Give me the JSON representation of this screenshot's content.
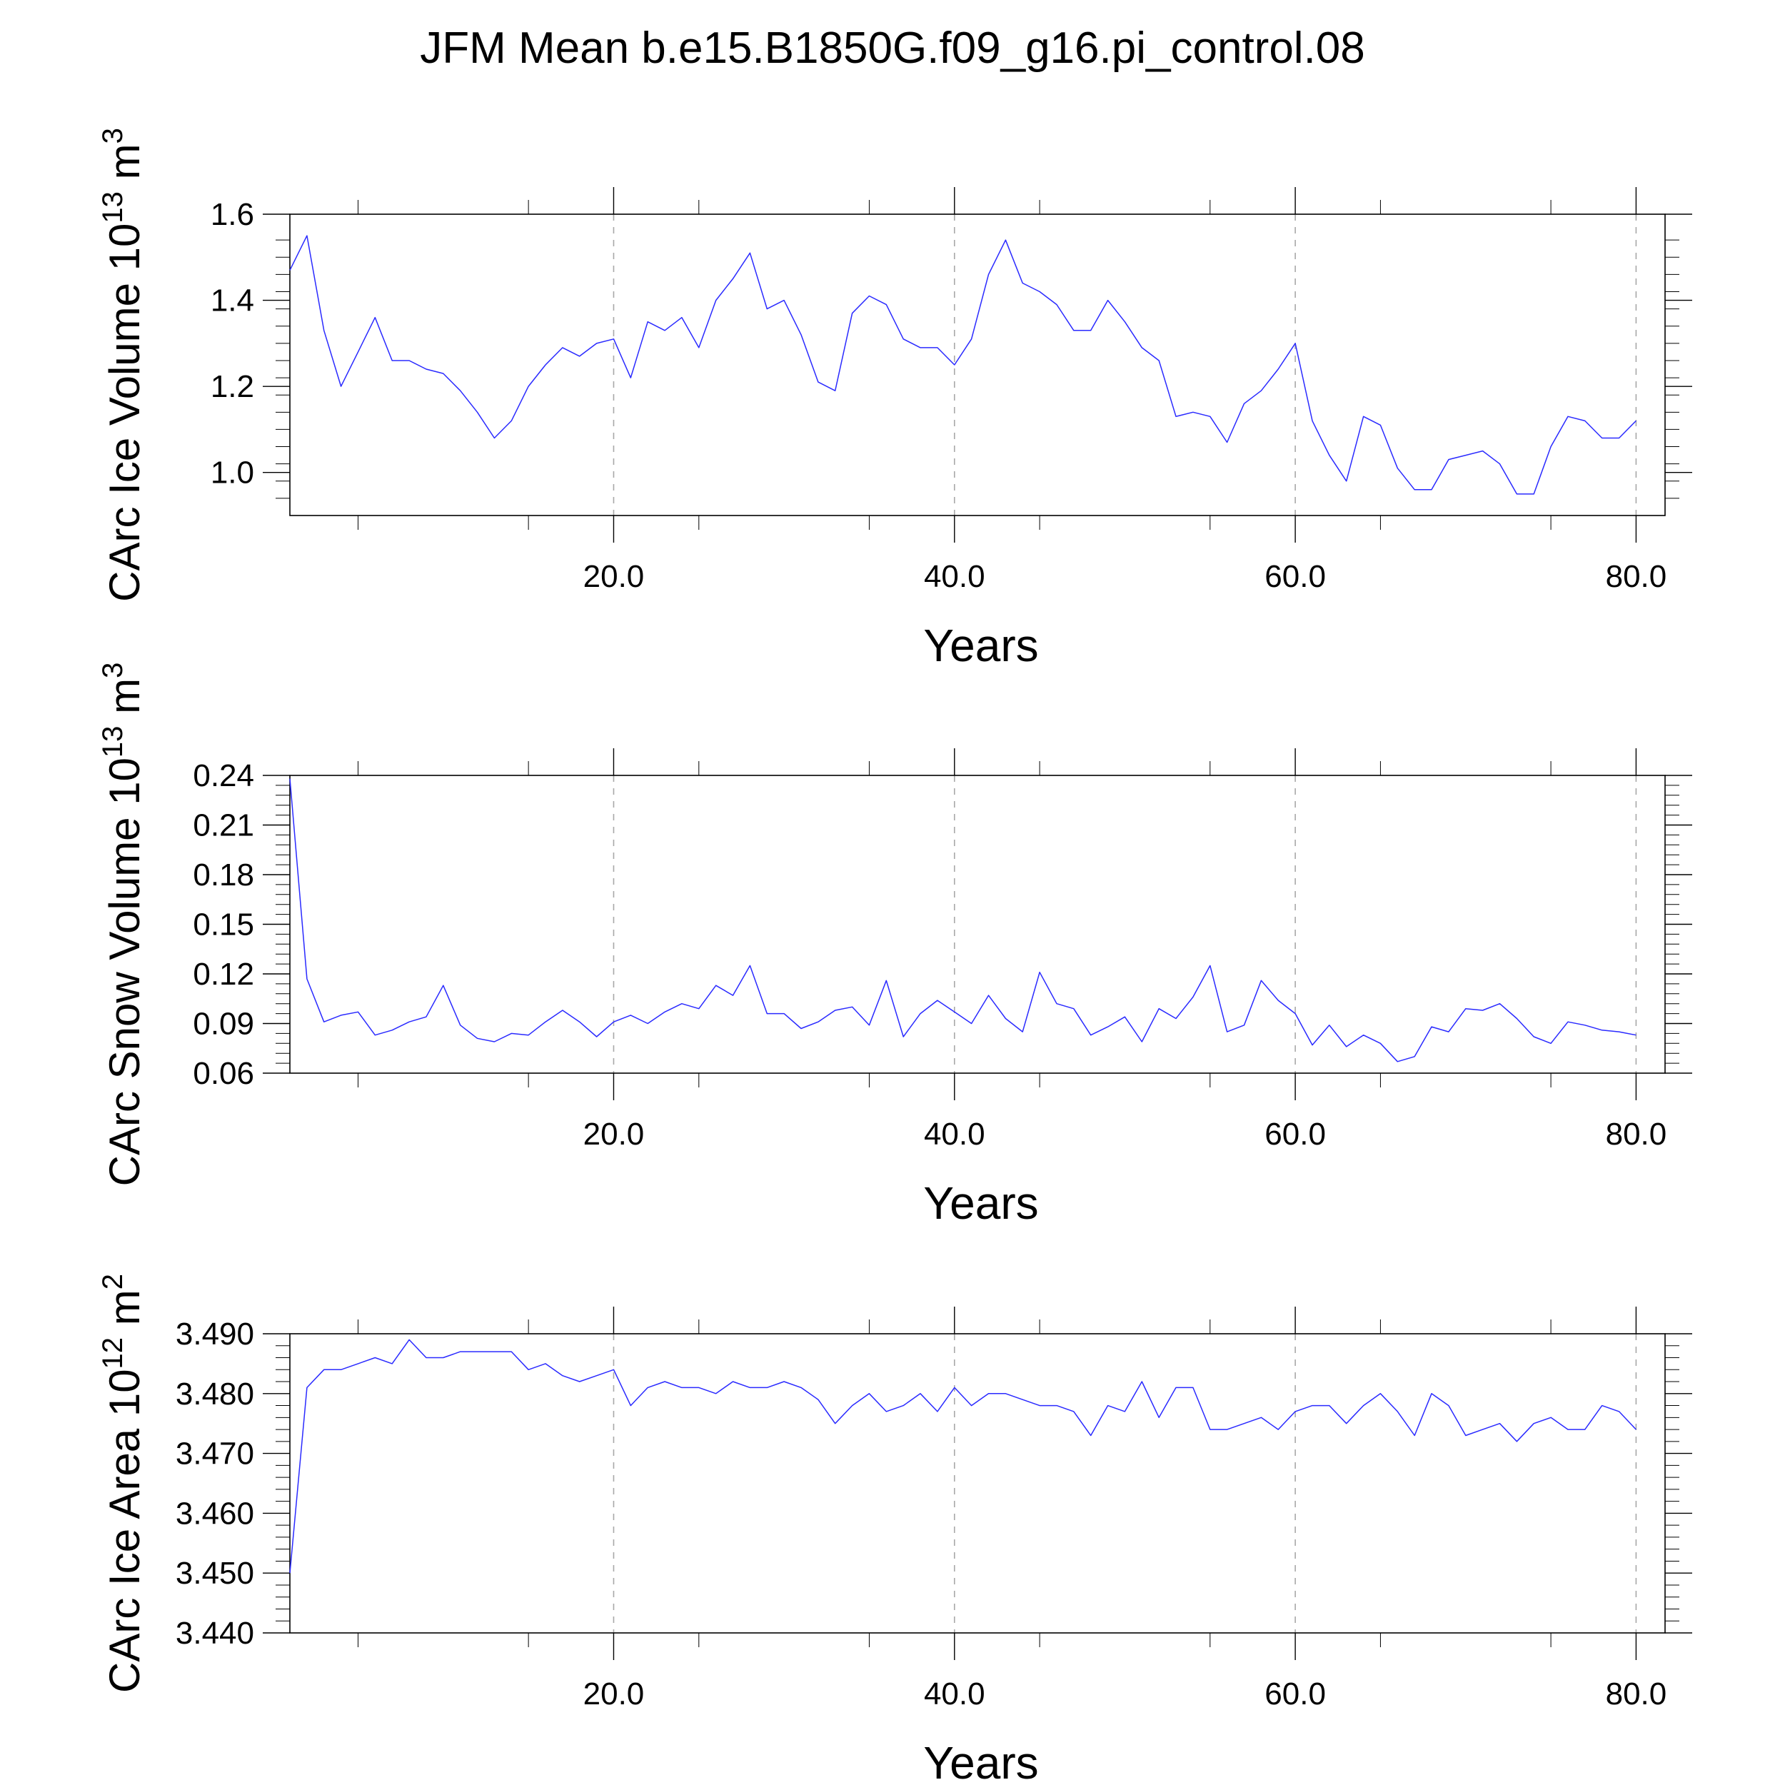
{
  "title": "JFM Mean b.e15.B1850G.f09_g16.pi_control.08",
  "colors": {
    "series": "#2a2aff",
    "grid": "#a8a8a8",
    "axis": "#000000"
  },
  "chart_data": [
    {
      "type": "line",
      "title": "",
      "xlabel": "Years",
      "ylabel": "CArc Ice Volume 10",
      "ylabel_exponent": "13",
      "ylabel_unit": " m",
      "ylabel_unit_exponent": "3",
      "xlim": [
        1,
        81.7
      ],
      "ylim": [
        0.9,
        1.6
      ],
      "xticks": [
        20,
        40,
        60,
        80
      ],
      "xtick_labels": [
        "20.0",
        "40.0",
        "60.0",
        "80.0"
      ],
      "yticks": [
        1.0,
        1.2,
        1.4,
        1.6
      ],
      "ytick_labels": [
        "1.0",
        "1.2",
        "1.4",
        "1.6"
      ],
      "grid": "vertical dashed at x ticks",
      "x_start": 1,
      "series": [
        {
          "values": [
            1.47,
            1.55,
            1.33,
            1.2,
            1.28,
            1.36,
            1.26,
            1.26,
            1.24,
            1.23,
            1.19,
            1.14,
            1.08,
            1.12,
            1.2,
            1.25,
            1.29,
            1.27,
            1.3,
            1.31,
            1.22,
            1.35,
            1.33,
            1.36,
            1.29,
            1.4,
            1.45,
            1.51,
            1.38,
            1.4,
            1.32,
            1.21,
            1.19,
            1.37,
            1.41,
            1.39,
            1.31,
            1.29,
            1.29,
            1.25,
            1.31,
            1.46,
            1.54,
            1.44,
            1.42,
            1.39,
            1.33,
            1.33,
            1.4,
            1.35,
            1.29,
            1.26,
            1.13,
            1.14,
            1.13,
            1.07,
            1.16,
            1.19,
            1.24,
            1.3,
            1.12,
            1.04,
            0.98,
            1.13,
            1.11,
            1.01,
            0.96,
            0.96,
            1.03,
            1.04,
            1.05,
            1.02,
            0.95,
            0.95,
            1.06,
            1.13,
            1.12,
            1.08,
            1.08,
            1.12
          ]
        }
      ]
    },
    {
      "type": "line",
      "title": "",
      "xlabel": "Years",
      "ylabel": "CArc Snow Volume 10",
      "ylabel_exponent": "13",
      "ylabel_unit": " m",
      "ylabel_unit_exponent": "3",
      "xlim": [
        1,
        81.7
      ],
      "ylim": [
        0.06,
        0.24
      ],
      "xticks": [
        20,
        40,
        60,
        80
      ],
      "xtick_labels": [
        "20.0",
        "40.0",
        "60.0",
        "80.0"
      ],
      "yticks": [
        0.06,
        0.09,
        0.12,
        0.15,
        0.18,
        0.21,
        0.24
      ],
      "ytick_labels": [
        "0.06",
        "0.09",
        "0.12",
        "0.15",
        "0.18",
        "0.21",
        "0.24"
      ],
      "grid": "vertical dashed at x ticks",
      "x_start": 1,
      "series": [
        {
          "values": [
            0.238,
            0.117,
            0.091,
            0.095,
            0.097,
            0.083,
            0.086,
            0.091,
            0.094,
            0.113,
            0.089,
            0.081,
            0.079,
            0.084,
            0.083,
            0.091,
            0.098,
            0.091,
            0.082,
            0.091,
            0.095,
            0.09,
            0.097,
            0.102,
            0.099,
            0.113,
            0.107,
            0.125,
            0.096,
            0.096,
            0.087,
            0.091,
            0.098,
            0.1,
            0.089,
            0.116,
            0.082,
            0.096,
            0.104,
            0.097,
            0.09,
            0.107,
            0.093,
            0.085,
            0.121,
            0.102,
            0.099,
            0.083,
            0.088,
            0.094,
            0.079,
            0.099,
            0.093,
            0.106,
            0.125,
            0.085,
            0.089,
            0.116,
            0.104,
            0.096,
            0.077,
            0.089,
            0.076,
            0.083,
            0.078,
            0.067,
            0.07,
            0.088,
            0.085,
            0.099,
            0.098,
            0.102,
            0.093,
            0.082,
            0.078,
            0.091,
            0.089,
            0.086,
            0.085,
            0.083
          ]
        }
      ]
    },
    {
      "type": "line",
      "title": "",
      "xlabel": "Years",
      "ylabel": "CArc Ice Area 10",
      "ylabel_exponent": "12",
      "ylabel_unit": " m",
      "ylabel_unit_exponent": "2",
      "xlim": [
        1,
        81.7
      ],
      "ylim": [
        3.44,
        3.49
      ],
      "xticks": [
        20,
        40,
        60,
        80
      ],
      "xtick_labels": [
        "20.0",
        "40.0",
        "60.0",
        "80.0"
      ],
      "yticks": [
        3.44,
        3.45,
        3.46,
        3.47,
        3.48,
        3.49
      ],
      "ytick_labels": [
        "3.440",
        "3.450",
        "3.460",
        "3.470",
        "3.480",
        "3.490"
      ],
      "grid": "vertical dashed at x ticks",
      "x_start": 1,
      "series": [
        {
          "values": [
            3.45,
            3.481,
            3.484,
            3.484,
            3.485,
            3.486,
            3.485,
            3.489,
            3.486,
            3.486,
            3.487,
            3.487,
            3.487,
            3.487,
            3.484,
            3.485,
            3.483,
            3.482,
            3.483,
            3.484,
            3.478,
            3.481,
            3.482,
            3.481,
            3.481,
            3.48,
            3.482,
            3.481,
            3.481,
            3.482,
            3.481,
            3.479,
            3.475,
            3.478,
            3.48,
            3.477,
            3.478,
            3.48,
            3.477,
            3.481,
            3.478,
            3.48,
            3.48,
            3.479,
            3.478,
            3.478,
            3.477,
            3.473,
            3.478,
            3.477,
            3.482,
            3.476,
            3.481,
            3.481,
            3.474,
            3.474,
            3.475,
            3.476,
            3.474,
            3.477,
            3.478,
            3.478,
            3.475,
            3.478,
            3.48,
            3.477,
            3.473,
            3.48,
            3.478,
            3.473,
            3.474,
            3.475,
            3.472,
            3.475,
            3.476,
            3.474,
            3.474,
            3.478,
            3.477,
            3.474
          ]
        }
      ]
    }
  ]
}
